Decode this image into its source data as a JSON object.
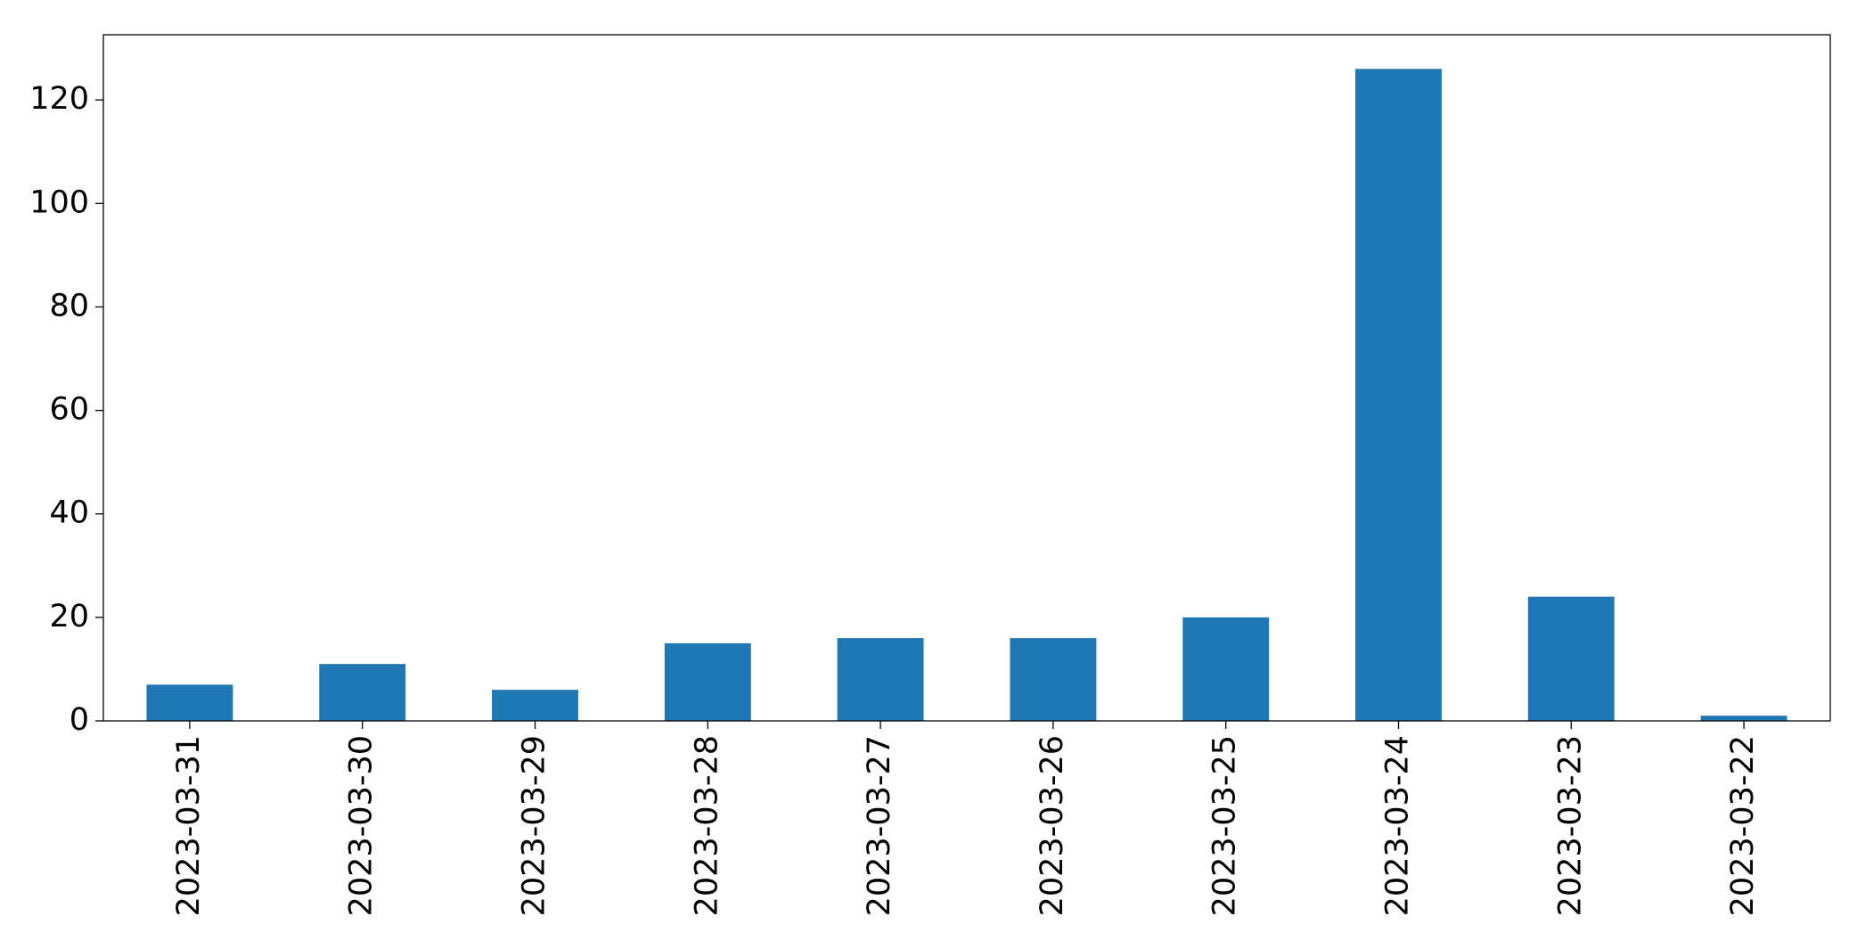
{
  "chart_data": {
    "type": "bar",
    "categories": [
      "2023-03-31",
      "2023-03-30",
      "2023-03-29",
      "2023-03-28",
      "2023-03-27",
      "2023-03-26",
      "2023-03-25",
      "2023-03-24",
      "2023-03-23",
      "2023-03-22"
    ],
    "values": [
      7,
      11,
      6,
      15,
      16,
      16,
      20,
      126,
      24,
      1
    ],
    "color": "#1f77b4",
    "ylim": [
      0,
      132.6
    ],
    "yticks": [
      0,
      20,
      40,
      60,
      80,
      100,
      120
    ],
    "grid": false
  }
}
